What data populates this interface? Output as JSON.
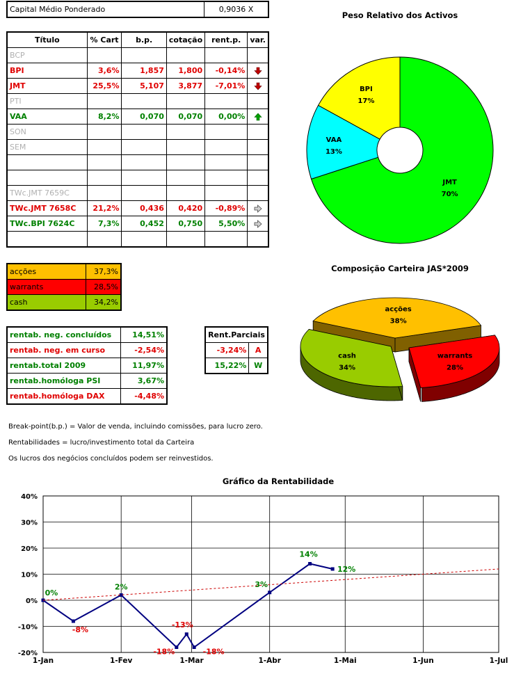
{
  "capital": {
    "label": "Capital Médio Ponderado",
    "value": "0,9036",
    "unit": "X"
  },
  "portfolio": {
    "headers": [
      "Título",
      "% Cart",
      "b.p.",
      "cotação",
      "rent.p.",
      "var."
    ],
    "rows": [
      {
        "titulo": "BCP",
        "cart": "",
        "bp": "",
        "cot": "",
        "rent": "",
        "var": "",
        "style": "gray"
      },
      {
        "titulo": "BPI",
        "cart": "3,6%",
        "bp": "1,857",
        "cot": "1,800",
        "rent": "-0,14%",
        "var": "down",
        "style": "red"
      },
      {
        "titulo": "JMT",
        "cart": "25,5%",
        "bp": "5,107",
        "cot": "3,877",
        "rent": "-7,01%",
        "var": "down",
        "style": "red"
      },
      {
        "titulo": "PTI",
        "cart": "",
        "bp": "",
        "cot": "",
        "rent": "",
        "var": "",
        "style": "gray"
      },
      {
        "titulo": "VAA",
        "cart": "8,2%",
        "bp": "0,070",
        "cot": "0,070",
        "rent": "0,00%",
        "var": "up",
        "style": "green"
      },
      {
        "titulo": "SON",
        "cart": "",
        "bp": "",
        "cot": "",
        "rent": "",
        "var": "",
        "style": "gray"
      },
      {
        "titulo": "SEM",
        "cart": "",
        "bp": "",
        "cot": "",
        "rent": "",
        "var": "",
        "style": "gray"
      },
      {
        "titulo": "",
        "cart": "",
        "bp": "",
        "cot": "",
        "rent": "",
        "var": "",
        "style": ""
      },
      {
        "titulo": "",
        "cart": "",
        "bp": "",
        "cot": "",
        "rent": "",
        "var": "",
        "style": ""
      },
      {
        "titulo": "TWc.JMT 7659C",
        "cart": "",
        "bp": "",
        "cot": "",
        "rent": "",
        "var": "",
        "style": "gray"
      },
      {
        "titulo": "TWc.JMT 7658C",
        "cart": "21,2%",
        "bp": "0,436",
        "cot": "0,420",
        "rent": "-0,89%",
        "var": "right",
        "style": "red"
      },
      {
        "titulo": "TWc.BPI 7624C",
        "cart": "7,3%",
        "bp": "0,452",
        "cot": "0,750",
        "rent": "5,50%",
        "var": "right",
        "style": "green"
      },
      {
        "titulo": "",
        "cart": "",
        "bp": "",
        "cot": "",
        "rent": "",
        "var": "",
        "style": ""
      }
    ]
  },
  "allocation": [
    {
      "label": "acções",
      "value": "37,3%",
      "color": "#ffc000"
    },
    {
      "label": "warrants",
      "value": "28,5%",
      "color": "#ff0000"
    },
    {
      "label": "cash",
      "value": "34,2%",
      "color": "#99cc00"
    }
  ],
  "returns": [
    {
      "label": "rentab. neg. concluídos",
      "value": "14,51%",
      "style": "green"
    },
    {
      "label": "rentab. neg. em curso",
      "value": "-2,54%",
      "style": "red"
    },
    {
      "label": "rentab.total 2009",
      "value": "11,97%",
      "style": "green"
    },
    {
      "label": "rentab.homóloga PSI",
      "value": "3,67%",
      "style": "green"
    },
    {
      "label": "rentab.homóloga DAX",
      "value": "-4,48%",
      "style": "red"
    }
  ],
  "partial": {
    "header": "Rent.Parciais",
    "rows": [
      {
        "value": "-3,24%",
        "code": "A",
        "style": "red"
      },
      {
        "value": "15,22%",
        "code": "W",
        "style": "green"
      }
    ]
  },
  "notes": [
    "Break-point(b.p.) = Valor de venda, incluindo comissões, para lucro zero.",
    "Rentabilidades = lucro/investimento total da Carteira",
    "Os lucros dos negócios concluídos podem ser reinvestidos."
  ],
  "chart_data": [
    {
      "type": "pie",
      "title": "Peso Relativo dos Activos",
      "labels": [
        "JMT",
        "VAA",
        "BPI"
      ],
      "values": [
        70,
        13,
        17
      ],
      "value_labels": [
        "70%",
        "13%",
        "17%"
      ],
      "colors": [
        "#00ff00",
        "#00ffff",
        "#ffff00"
      ],
      "style": "doughnut"
    },
    {
      "type": "pie",
      "title": "Composição Carteira JAS*2009",
      "labels": [
        "acções",
        "warrants",
        "cash"
      ],
      "values": [
        38,
        28,
        34
      ],
      "value_labels": [
        "38%",
        "28%",
        "34%"
      ],
      "colors": [
        "#ffc000",
        "#ff0000",
        "#99cc00"
      ],
      "style": "3d-exploded"
    },
    {
      "type": "line",
      "title": "Gráfico da Rentabilidade",
      "x_ticks": [
        "1-Jan",
        "1-Fev",
        "1-Mar",
        "1-Abr",
        "1-Mai",
        "1-Jun",
        "1-Jul"
      ],
      "y_ticks": [
        "40%",
        "30%",
        "20%",
        "10%",
        "0%",
        "-10%",
        "-20%"
      ],
      "ylim": [
        -20,
        40
      ],
      "grid": true,
      "series": [
        {
          "x": [
            "2009-01-01",
            "2009-01-13",
            "2009-02-01",
            "2009-02-23",
            "2009-02-27",
            "2009-03-02",
            "2009-04-01",
            "2009-04-17",
            "2009-04-26"
          ],
          "y": [
            0,
            -8,
            2,
            -18,
            -13,
            -18,
            3,
            14,
            12
          ],
          "color": "#000080"
        },
        {
          "x": [
            "2009-01-01",
            "2009-07-01"
          ],
          "y": [
            0,
            12
          ],
          "color": "#cc0000",
          "dashed": true
        }
      ],
      "annotations": [
        {
          "text": "0%",
          "x": "2009-01-01",
          "y": 0,
          "color": "#008000"
        },
        {
          "text": "-8%",
          "x": "2009-01-13",
          "y": -8,
          "color": "#e00000"
        },
        {
          "text": "2%",
          "x": "2009-02-01",
          "y": 2,
          "color": "#008000"
        },
        {
          "text": "-18%",
          "x": "2009-02-23",
          "y": -18,
          "color": "#e00000"
        },
        {
          "text": "-13%",
          "x": "2009-02-27",
          "y": -13,
          "color": "#e00000"
        },
        {
          "text": "-18%",
          "x": "2009-03-02",
          "y": -18,
          "color": "#e00000"
        },
        {
          "text": "3%",
          "x": "2009-04-01",
          "y": 3,
          "color": "#008000"
        },
        {
          "text": "14%",
          "x": "2009-04-17",
          "y": 14,
          "color": "#008000"
        },
        {
          "text": "12%",
          "x": "2009-04-26",
          "y": 12,
          "color": "#008000"
        }
      ]
    }
  ]
}
